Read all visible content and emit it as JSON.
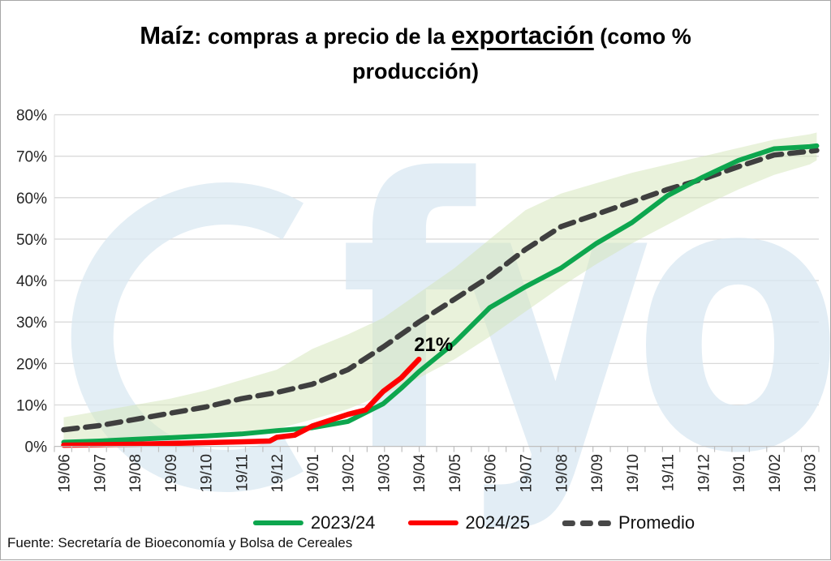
{
  "title": {
    "seg1": "Maíz",
    "seg2": ": compras a precio de la ",
    "seg3": "exportación",
    "seg4": " (como %",
    "line2": "producción)"
  },
  "source": "Fuente: Secretaría de Bioeconomía y Bolsa de Cereales",
  "watermark": "fyo",
  "legend": [
    {
      "label": "2023/24",
      "color": "#0DA64E",
      "style": "solid"
    },
    {
      "label": "2024/25",
      "color": "#FE0000",
      "style": "solid"
    },
    {
      "label": "Promedio",
      "color": "#474747",
      "style": "dashed"
    }
  ],
  "chart_data": {
    "type": "line",
    "title": "Maíz: compras a precio de la exportación (como % producción)",
    "xlabel": "",
    "ylabel": "",
    "ylim": [
      0,
      80
    ],
    "grid": true,
    "legend_position": "bottom",
    "y_ticks": [
      "0%",
      "10%",
      "20%",
      "30%",
      "40%",
      "50%",
      "60%",
      "70%",
      "80%"
    ],
    "x_labels": [
      "19/06",
      "19/07",
      "19/08",
      "19/09",
      "19/10",
      "19/11",
      "19/12",
      "19/01",
      "19/02",
      "19/03",
      "19/04",
      "19/05",
      "19/06",
      "19/07",
      "19/08",
      "19/09",
      "19/10",
      "19/11",
      "19/12",
      "19/01",
      "19/02",
      "19/03"
    ],
    "minor_ticks_between_labels": 2,
    "band": {
      "name": "rango min-max",
      "color": "#d3e5b8",
      "top": [
        [
          0,
          7
        ],
        [
          1,
          8.5
        ],
        [
          2,
          10
        ],
        [
          3,
          11.5
        ],
        [
          4,
          13.5
        ],
        [
          5,
          16
        ],
        [
          6,
          18.5
        ],
        [
          7,
          23.5
        ],
        [
          8,
          27
        ],
        [
          9,
          31
        ],
        [
          10,
          37
        ],
        [
          11,
          43
        ],
        [
          12,
          50
        ],
        [
          13,
          57
        ],
        [
          14,
          61
        ],
        [
          15,
          63.5
        ],
        [
          16,
          66
        ],
        [
          17,
          68
        ],
        [
          18,
          70
        ],
        [
          19,
          72
        ],
        [
          20,
          74
        ],
        [
          21,
          75.3
        ],
        [
          21.2,
          75.7
        ]
      ],
      "bottom": [
        [
          0,
          0.7
        ],
        [
          1,
          1
        ],
        [
          2,
          1.4
        ],
        [
          3,
          1.9
        ],
        [
          4,
          2.4
        ],
        [
          5,
          3
        ],
        [
          6,
          4.2
        ],
        [
          7,
          6.5
        ],
        [
          8,
          9
        ],
        [
          9,
          12.5
        ],
        [
          10,
          16.5
        ],
        [
          11,
          21
        ],
        [
          12,
          26.5
        ],
        [
          13,
          32.5
        ],
        [
          14,
          38.5
        ],
        [
          15,
          44
        ],
        [
          16,
          49
        ],
        [
          17,
          53.5
        ],
        [
          18,
          58
        ],
        [
          19,
          62
        ],
        [
          20,
          65.5
        ],
        [
          21,
          68
        ],
        [
          21.2,
          69
        ]
      ]
    },
    "series": [
      {
        "name": "Promedio",
        "color": "#3F3F3F",
        "style": "dashed",
        "width": 6.5,
        "points": [
          [
            0,
            4
          ],
          [
            1,
            5
          ],
          [
            2,
            6.5
          ],
          [
            3,
            8
          ],
          [
            4,
            9.5
          ],
          [
            5,
            11.5
          ],
          [
            6,
            13
          ],
          [
            7,
            15
          ],
          [
            8,
            18.5
          ],
          [
            9,
            24
          ],
          [
            10,
            30
          ],
          [
            11,
            35.5
          ],
          [
            12,
            41
          ],
          [
            13,
            47.5
          ],
          [
            14,
            53
          ],
          [
            15,
            56
          ],
          [
            16,
            59
          ],
          [
            17,
            62
          ],
          [
            18,
            64.5
          ],
          [
            19,
            67.5
          ],
          [
            20,
            70.3
          ],
          [
            21,
            71.2
          ],
          [
            21.2,
            71.4
          ]
        ]
      },
      {
        "name": "2023/24",
        "color": "#0DA64E",
        "style": "solid",
        "width": 6,
        "points": [
          [
            0,
            1
          ],
          [
            1,
            1.3
          ],
          [
            2,
            1.7
          ],
          [
            3,
            2.1
          ],
          [
            4,
            2.5
          ],
          [
            5,
            3
          ],
          [
            6,
            3.8
          ],
          [
            7,
            4.5
          ],
          [
            8,
            6
          ],
          [
            9,
            10.3
          ],
          [
            9.5,
            14
          ],
          [
            10,
            18
          ],
          [
            10.5,
            21.5
          ],
          [
            11,
            25
          ],
          [
            12,
            33.5
          ],
          [
            13,
            38.5
          ],
          [
            14,
            43
          ],
          [
            15,
            49
          ],
          [
            16,
            54
          ],
          [
            17,
            60.5
          ],
          [
            18,
            65
          ],
          [
            19,
            69
          ],
          [
            20,
            71.8
          ],
          [
            21,
            72.3
          ],
          [
            21.2,
            72.5
          ]
        ]
      },
      {
        "name": "2024/25",
        "color": "#FE0000",
        "style": "solid",
        "width": 6.5,
        "points": [
          [
            0,
            0.3
          ],
          [
            1,
            0.4
          ],
          [
            2,
            0.5
          ],
          [
            3,
            0.7
          ],
          [
            4,
            0.9
          ],
          [
            5,
            1.1
          ],
          [
            5.8,
            1.3
          ],
          [
            6,
            2.2
          ],
          [
            6.5,
            2.7
          ],
          [
            7,
            4.9
          ],
          [
            8,
            7.7
          ],
          [
            8.5,
            8.8
          ],
          [
            9,
            13.3
          ],
          [
            9.5,
            16.5
          ],
          [
            10,
            21
          ]
        ]
      }
    ],
    "annotation": {
      "text": "21%",
      "x_index": 10,
      "value": 21
    }
  }
}
